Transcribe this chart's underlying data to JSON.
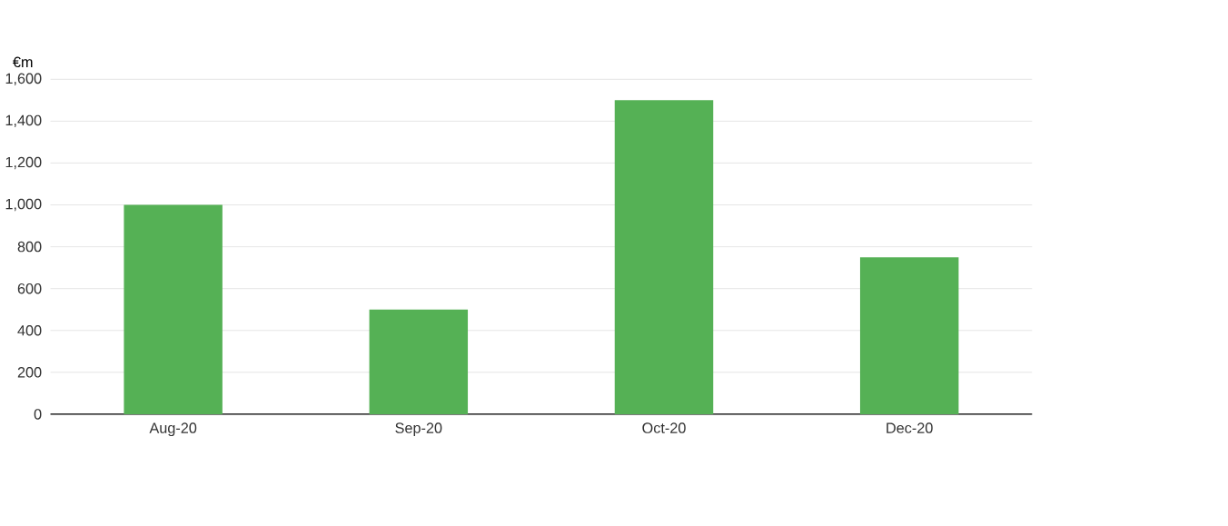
{
  "chart_data": {
    "type": "bar",
    "ylabel": "€m",
    "categories": [
      "Aug-20",
      "Sep-20",
      "Oct-20",
      "Dec-20"
    ],
    "values": [
      1000,
      500,
      1500,
      750
    ],
    "color": "#55b155",
    "ylim": [
      0,
      1600
    ],
    "yticks": [
      0,
      200,
      400,
      600,
      800,
      {
        "value": 1000,
        "label": "1,000"
      },
      {
        "value": 1200,
        "label": "1,200"
      },
      {
        "value": 1400,
        "label": "1,400"
      },
      {
        "value": 1600,
        "label": "1,600"
      }
    ],
    "grid": "y"
  }
}
